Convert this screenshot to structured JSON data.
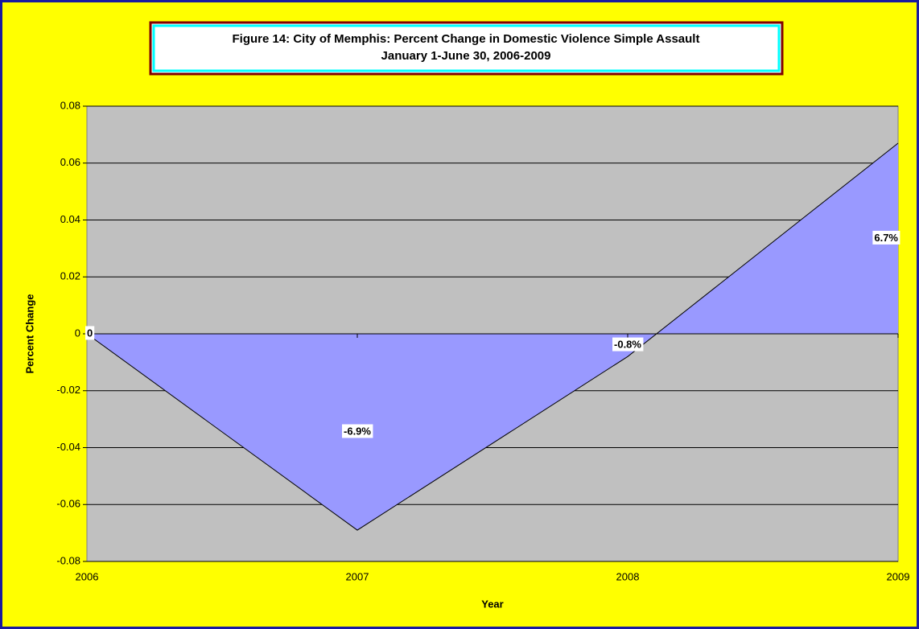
{
  "chart_data": {
    "type": "area",
    "title": "Figure 14: City of Memphis: Percent Change in Domestic Violence Simple Assault",
    "subtitle": "January 1-June 30, 2006-2009",
    "x_label": "Year",
    "y_label": "Percent Change",
    "categories": [
      "2006",
      "2007",
      "2008",
      "2009"
    ],
    "values": [
      0,
      -0.069,
      -0.008,
      0.067
    ],
    "value_labels": [
      "0",
      "-6.9%",
      "-0.8%",
      "6.7%"
    ],
    "color": "#9999ff",
    "line_color": "#000000",
    "ylim": [
      -0.08,
      0.08
    ],
    "yticks": [
      0.08,
      0.06,
      0.04,
      0.02,
      0,
      -0.02,
      -0.04,
      -0.06,
      -0.08
    ],
    "grid": true
  }
}
